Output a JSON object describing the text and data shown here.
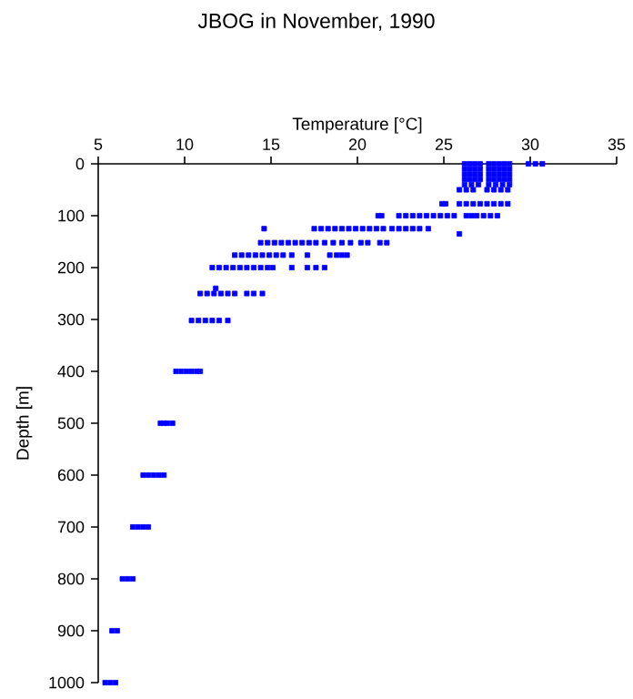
{
  "chart_data": {
    "type": "scatter",
    "title": "JBOG in November, 1990",
    "xlabel": "Temperature [°C]",
    "ylabel": "Depth [m]",
    "xlim": [
      5,
      35
    ],
    "xticks": [
      5,
      10,
      15,
      20,
      25,
      30,
      35
    ],
    "ylim": [
      1000,
      0
    ],
    "yticks": [
      0,
      100,
      200,
      300,
      400,
      500,
      600,
      700,
      800,
      900,
      1000
    ],
    "marker": "square",
    "series": [
      {
        "color": "#0000ff",
        "x": [
          26.2,
          26.5,
          26.8,
          27.1,
          27.6,
          27.9,
          28.2,
          28.5,
          28.8,
          29.9,
          30.3,
          30.7
        ],
        "values": [
          0,
          0,
          0,
          0,
          0,
          0,
          0,
          0,
          0,
          0,
          0,
          0
        ]
      },
      {
        "color": "#0000ff",
        "x": [
          26.2,
          26.5,
          26.8,
          27.1,
          27.6,
          27.9,
          28.2,
          28.5,
          28.8
        ],
        "values": [
          10,
          10,
          10,
          10,
          10,
          10,
          10,
          10,
          10
        ]
      },
      {
        "color": "#0000ff",
        "x": [
          26.2,
          26.5,
          26.8,
          27.1,
          27.6,
          27.9,
          28.2,
          28.5,
          28.8
        ],
        "values": [
          20,
          20,
          20,
          20,
          20,
          20,
          20,
          20,
          20
        ]
      },
      {
        "color": "#0000ff",
        "x": [
          26.2,
          26.5,
          26.8,
          27.1,
          27.6,
          27.9,
          28.2,
          28.5,
          28.8
        ],
        "values": [
          30,
          30,
          30,
          30,
          30,
          30,
          30,
          30,
          30
        ]
      },
      {
        "color": "#0000ff",
        "x": [
          26.2,
          26.6,
          27.0,
          27.6,
          28.0,
          28.4,
          28.8
        ],
        "values": [
          40,
          40,
          40,
          40,
          40,
          40,
          40
        ]
      },
      {
        "color": "#0000ff",
        "x": [
          25.9,
          26.3,
          26.7,
          27.5,
          27.9,
          28.3,
          28.7
        ],
        "values": [
          50,
          50,
          50,
          50,
          50,
          50,
          50
        ]
      },
      {
        "color": "#0000ff",
        "x": [
          24.9,
          25.1,
          25.9,
          26.3,
          26.7,
          27.1,
          27.5,
          27.9,
          28.3,
          28.7
        ],
        "values": [
          77,
          77,
          77,
          77,
          77,
          77,
          77,
          77,
          77,
          77
        ]
      },
      {
        "color": "#0000ff",
        "x": [
          21.2,
          21.4,
          22.4,
          22.8,
          23.2,
          23.6,
          24.0,
          24.4,
          24.8,
          25.2,
          25.6,
          26.3,
          26.6,
          26.9,
          27.3,
          27.7,
          28.1
        ],
        "values": [
          100,
          100,
          100,
          100,
          100,
          100,
          100,
          100,
          100,
          100,
          100,
          100,
          100,
          100,
          100,
          100,
          100
        ]
      },
      {
        "color": "#0000ff",
        "x": [
          14.6,
          17.5,
          17.9,
          18.3,
          18.7,
          19.1,
          19.5,
          19.9,
          20.3,
          20.7,
          21.1,
          21.5,
          22.0,
          22.4,
          22.8,
          23.2,
          23.6,
          24.1
        ],
        "values": [
          125,
          125,
          125,
          125,
          125,
          125,
          125,
          125,
          125,
          125,
          125,
          125,
          125,
          125,
          125,
          125,
          125,
          125
        ]
      },
      {
        "color": "#0000ff",
        "x": [
          25.9
        ],
        "values": [
          135
        ]
      },
      {
        "color": "#0000ff",
        "x": [
          14.4,
          14.8,
          15.2,
          15.6,
          16.0,
          16.4,
          16.8,
          17.2,
          17.6,
          18.1,
          18.6,
          19.1,
          19.6,
          20.2,
          20.6,
          21.3,
          21.7
        ],
        "values": [
          152,
          152,
          152,
          152,
          152,
          152,
          152,
          152,
          152,
          152,
          152,
          152,
          152,
          152,
          152,
          152,
          152
        ]
      },
      {
        "color": "#0000ff",
        "x": [
          12.9,
          13.3,
          13.7,
          14.1,
          14.5,
          14.9,
          15.3,
          15.7,
          16.2,
          17.1,
          18.4,
          18.8,
          19.1,
          19.4
        ],
        "values": [
          176,
          176,
          176,
          176,
          176,
          176,
          176,
          176,
          176,
          176,
          176,
          176,
          176,
          176
        ]
      },
      {
        "color": "#0000ff",
        "x": [
          11.6,
          12.0,
          12.4,
          12.8,
          13.2,
          13.6,
          14.0,
          14.4,
          14.8,
          15.1,
          16.2,
          17.1,
          17.6,
          18.1
        ],
        "values": [
          200,
          200,
          200,
          200,
          200,
          200,
          200,
          200,
          200,
          200,
          200,
          200,
          200,
          200
        ]
      },
      {
        "color": "#0000ff",
        "x": [
          11.8
        ],
        "values": [
          240
        ]
      },
      {
        "color": "#0000ff",
        "x": [
          10.9,
          11.3,
          11.7,
          12.1,
          12.5,
          12.9,
          13.6,
          14.0,
          14.5
        ],
        "values": [
          250,
          250,
          250,
          250,
          250,
          250,
          250,
          250,
          250
        ]
      },
      {
        "color": "#0000ff",
        "x": [
          10.4,
          10.8,
          11.2,
          11.6,
          12.0,
          12.5
        ],
        "values": [
          302,
          302,
          302,
          302,
          302,
          302
        ]
      },
      {
        "color": "#0000ff",
        "x": [
          9.5,
          9.8,
          10.1,
          10.4,
          10.7,
          10.9
        ],
        "values": [
          400,
          400,
          400,
          400,
          400,
          400
        ]
      },
      {
        "color": "#0000ff",
        "x": [
          8.6,
          8.8,
          9.0,
          9.3
        ],
        "values": [
          500,
          500,
          500,
          500
        ]
      },
      {
        "color": "#0000ff",
        "x": [
          7.6,
          7.9,
          8.2,
          8.5,
          8.8
        ],
        "values": [
          600,
          600,
          600,
          600,
          600
        ]
      },
      {
        "color": "#0000ff",
        "x": [
          7.0,
          7.3,
          7.6,
          7.9
        ],
        "values": [
          700,
          700,
          700,
          700
        ]
      },
      {
        "color": "#0000ff",
        "x": [
          6.4,
          6.7,
          7.0
        ],
        "values": [
          800,
          800,
          800
        ]
      },
      {
        "color": "#0000ff",
        "x": [
          5.8,
          6.1
        ],
        "values": [
          900,
          900
        ]
      },
      {
        "color": "#0000ff",
        "x": [
          5.4,
          5.7,
          6.0
        ],
        "values": [
          1000,
          1000,
          1000
        ]
      }
    ]
  }
}
